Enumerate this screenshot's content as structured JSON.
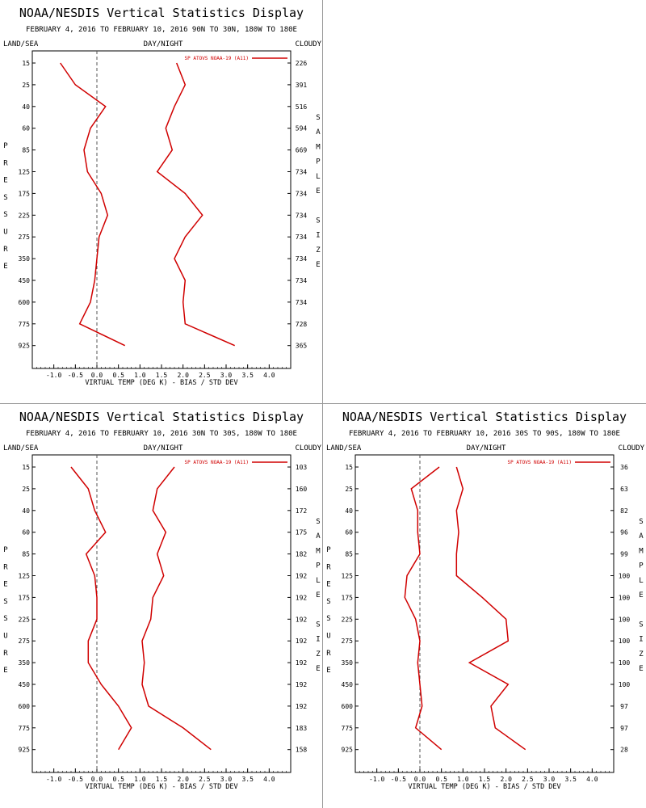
{
  "chart_data": [
    {
      "type": "line",
      "title": "NOAA/NESDIS Vertical Statistics Display",
      "subtitle": "FEBRUARY 4, 2016 TO FEBRUARY 10, 2016 90N TO 30N, 180W TO 180E",
      "header_left": "LAND/SEA",
      "header_center": "DAY/NIGHT",
      "header_right": "CLOUDY",
      "xlabel": "VIRTUAL TEMP (DEG K) - BIAS / STD DEV",
      "ylabel": "PRESSURE",
      "y2label": "SAMPLE SIZE",
      "legend": "SP ATOVS NOAA-19 (A11)",
      "xlim": [
        -1.5,
        4.5
      ],
      "x_ticks": [
        "-1.0",
        "-0.5",
        "0.0",
        "0.5",
        "1.0",
        "1.5",
        "2.0",
        "2.5",
        "3.0",
        "3.5",
        "4.0"
      ],
      "levels": [
        "15",
        "25",
        "40",
        "60",
        "85",
        "125",
        "175",
        "225",
        "275",
        "350",
        "450",
        "600",
        "775",
        "925"
      ],
      "sample_size": [
        "226",
        "391",
        "516",
        "594",
        "669",
        "734",
        "734",
        "734",
        "734",
        "734",
        "734",
        "734",
        "728",
        "365"
      ],
      "series": [
        {
          "values": [
            -0.85,
            -0.5,
            0.2,
            -0.15,
            -0.3,
            -0.22,
            0.1,
            0.25,
            0.05,
            0.0,
            -0.05,
            -0.15,
            -0.4,
            0.65
          ]
        },
        {
          "values": [
            1.85,
            2.05,
            1.8,
            1.6,
            1.75,
            1.4,
            2.05,
            2.45,
            2.05,
            1.8,
            2.05,
            2.0,
            2.05,
            3.2
          ]
        }
      ]
    },
    {
      "type": "line",
      "title": "NOAA/NESDIS Vertical Statistics Display",
      "subtitle": "FEBRUARY 4, 2016 TO FEBRUARY 10, 2016 30N TO 30S, 180W TO 180E",
      "header_left": "LAND/SEA",
      "header_center": "DAY/NIGHT",
      "header_right": "CLOUDY",
      "xlabel": "VIRTUAL TEMP (DEG K) - BIAS / STD DEV",
      "ylabel": "PRESSURE",
      "y2label": "SAMPLE SIZE",
      "legend": "SP ATOVS NOAA-19 (A11)",
      "xlim": [
        -1.5,
        4.5
      ],
      "x_ticks": [
        "-1.0",
        "-0.5",
        "0.0",
        "0.5",
        "1.0",
        "1.5",
        "2.0",
        "2.5",
        "3.0",
        "3.5",
        "4.0"
      ],
      "levels": [
        "15",
        "25",
        "40",
        "60",
        "85",
        "125",
        "175",
        "225",
        "275",
        "350",
        "450",
        "600",
        "775",
        "925"
      ],
      "sample_size": [
        "103",
        "160",
        "172",
        "175",
        "182",
        "192",
        "192",
        "192",
        "192",
        "192",
        "192",
        "192",
        "183",
        "158"
      ],
      "series": [
        {
          "values": [
            -0.6,
            -0.2,
            -0.05,
            0.2,
            -0.25,
            -0.05,
            0.0,
            0.0,
            -0.2,
            -0.2,
            0.1,
            0.5,
            0.8,
            0.5
          ]
        },
        {
          "values": [
            1.8,
            1.4,
            1.3,
            1.6,
            1.4,
            1.55,
            1.3,
            1.25,
            1.05,
            1.1,
            1.05,
            1.2,
            2.0,
            2.65
          ]
        }
      ]
    },
    {
      "type": "line",
      "title": "NOAA/NESDIS Vertical Statistics Display",
      "subtitle": "FEBRUARY 4, 2016 TO FEBRUARY 10, 2016 30S TO 90S, 180W TO 180E",
      "header_left": "LAND/SEA",
      "header_center": "DAY/NIGHT",
      "header_right": "CLOUDY",
      "xlabel": "VIRTUAL TEMP (DEG K) - BIAS / STD DEV",
      "ylabel": "PRESSURE",
      "y2label": "SAMPLE SIZE",
      "legend": "SP ATOVS NOAA-19 (A11)",
      "xlim": [
        -1.5,
        4.5
      ],
      "x_ticks": [
        "-1.0",
        "-0.5",
        "0.0",
        "0.5",
        "1.0",
        "1.5",
        "2.0",
        "2.5",
        "3.0",
        "3.5",
        "4.0"
      ],
      "levels": [
        "15",
        "25",
        "40",
        "60",
        "85",
        "125",
        "175",
        "225",
        "275",
        "350",
        "450",
        "600",
        "775",
        "925"
      ],
      "sample_size": [
        "36",
        "63",
        "82",
        "96",
        "99",
        "100",
        "100",
        "100",
        "100",
        "100",
        "100",
        "97",
        "97",
        "28"
      ],
      "series": [
        {
          "values": [
            0.45,
            -0.2,
            -0.05,
            -0.05,
            0.0,
            -0.3,
            -0.35,
            -0.1,
            0.0,
            -0.05,
            0.0,
            0.05,
            -0.1,
            0.5
          ]
        },
        {
          "values": [
            0.85,
            1.0,
            0.85,
            0.9,
            0.85,
            0.85,
            1.45,
            2.0,
            2.05,
            1.15,
            2.05,
            1.65,
            1.75,
            2.45
          ]
        }
      ]
    }
  ],
  "colors": {
    "series": "#d00000",
    "axis": "#000000",
    "zero_line": "#555555"
  }
}
